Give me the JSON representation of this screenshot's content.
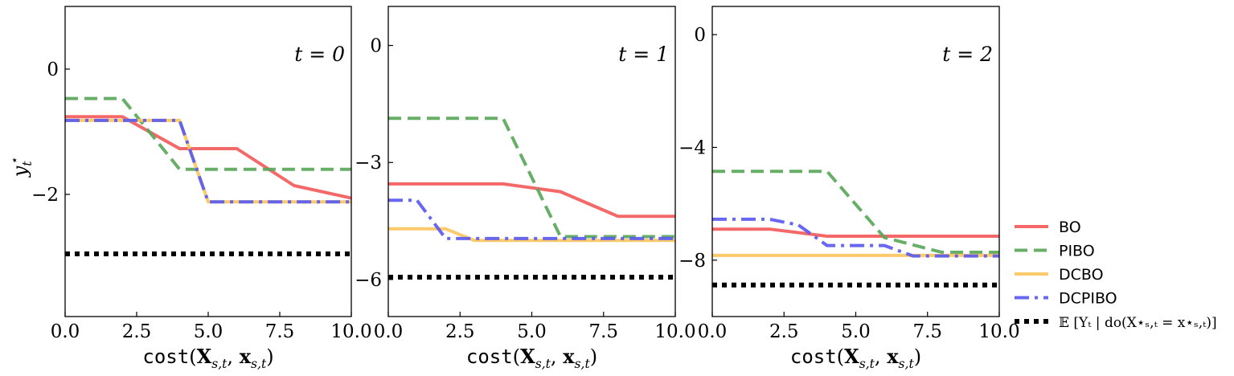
{
  "chart_data": [
    {
      "type": "line",
      "panel_label": "t = 0",
      "xlabel": "cost(X_{s,t}, x_{s,t})",
      "ylabel": "y_t^*",
      "xlim": [
        0,
        10
      ],
      "ylim": [
        -3.95,
        1.0
      ],
      "xticks": [
        0,
        2.5,
        5,
        7.5,
        10
      ],
      "xtick_labels": [
        "0.0",
        "2.5",
        "5.0",
        "7.5",
        "10.0"
      ],
      "yticks": [
        0,
        -2
      ],
      "ytick_labels": [
        "0",
        "−2"
      ],
      "series": [
        {
          "name": "BO",
          "color": "#f45b5b",
          "dash": "solid",
          "x": [
            0,
            2,
            4,
            6,
            8,
            10
          ],
          "y": [
            -0.76,
            -0.76,
            -1.27,
            -1.27,
            -1.86,
            -2.06
          ]
        },
        {
          "name": "PIBO",
          "color": "#5aa75a",
          "dash": "dashed",
          "x": [
            0,
            2,
            4,
            10
          ],
          "y": [
            -0.47,
            -0.47,
            -1.6,
            -1.6
          ]
        },
        {
          "name": "DCBO",
          "color": "#fcc45e",
          "dash": "solid",
          "x": [
            0,
            4,
            5,
            10
          ],
          "y": [
            -0.82,
            -0.82,
            -2.12,
            -2.12
          ]
        },
        {
          "name": "DCPIBO",
          "color": "#5a5af0",
          "dash": "dashdot",
          "x": [
            0,
            4,
            5,
            10
          ],
          "y": [
            -0.82,
            -0.82,
            -2.12,
            -2.12
          ]
        },
        {
          "name": "E[Y_t | do(X*_{s,t} = x*_{s,t})]",
          "color": "#000000",
          "dash": "dotted",
          "x": [
            0,
            10
          ],
          "y": [
            -2.95,
            -2.95
          ]
        }
      ]
    },
    {
      "type": "line",
      "panel_label": "t = 1",
      "xlabel": "cost(X_{s,t}, x_{s,t})",
      "xlim": [
        0,
        10
      ],
      "ylim": [
        -6.95,
        1.0
      ],
      "xticks": [
        0,
        2.5,
        5,
        7.5,
        10
      ],
      "xtick_labels": [
        "0.0",
        "2.5",
        "5.0",
        "7.5",
        "10.0"
      ],
      "yticks": [
        0,
        -3,
        -6
      ],
      "ytick_labels": [
        "0",
        "−3",
        "−6"
      ],
      "series": [
        {
          "name": "BO",
          "color": "#f45b5b",
          "dash": "solid",
          "x": [
            0,
            4,
            6,
            8,
            10
          ],
          "y": [
            -3.55,
            -3.55,
            -3.75,
            -4.38,
            -4.38
          ]
        },
        {
          "name": "PIBO",
          "color": "#5aa75a",
          "dash": "dashed",
          "x": [
            0,
            4,
            6,
            10
          ],
          "y": [
            -1.87,
            -1.87,
            -4.9,
            -4.9
          ]
        },
        {
          "name": "DCBO",
          "color": "#fcc45e",
          "dash": "solid",
          "x": [
            0,
            2,
            3,
            10
          ],
          "y": [
            -4.7,
            -4.7,
            -5.0,
            -5.0
          ]
        },
        {
          "name": "DCPIBO",
          "color": "#5a5af0",
          "dash": "dashdot",
          "x": [
            0,
            1,
            2,
            10
          ],
          "y": [
            -3.97,
            -3.97,
            -4.95,
            -4.95
          ]
        },
        {
          "name": "E[Y_t | do(X*_{s,t} = x*_{s,t})]",
          "color": "#000000",
          "dash": "dotted",
          "x": [
            0,
            10
          ],
          "y": [
            -5.94,
            -5.94
          ]
        }
      ]
    },
    {
      "type": "line",
      "panel_label": "t = 2",
      "xlabel": "cost(X_{s,t}, x_{s,t})",
      "xlim": [
        0,
        10
      ],
      "ylim": [
        -10.0,
        1.0
      ],
      "xticks": [
        0,
        2.5,
        5,
        7.5,
        10
      ],
      "xtick_labels": [
        "0.0",
        "2.5",
        "5.0",
        "7.5",
        "10.0"
      ],
      "yticks": [
        0,
        -4,
        -8
      ],
      "ytick_labels": [
        "0",
        "−4",
        "−8"
      ],
      "series": [
        {
          "name": "BO",
          "color": "#f45b5b",
          "dash": "solid",
          "x": [
            0,
            2,
            4,
            10
          ],
          "y": [
            -6.9,
            -6.9,
            -7.15,
            -7.15
          ]
        },
        {
          "name": "PIBO",
          "color": "#5aa75a",
          "dash": "dashed",
          "x": [
            0,
            4,
            6,
            8,
            10
          ],
          "y": [
            -4.85,
            -4.85,
            -7.2,
            -7.72,
            -7.72
          ]
        },
        {
          "name": "DCBO",
          "color": "#fcc45e",
          "dash": "solid",
          "x": [
            0,
            10
          ],
          "y": [
            -7.83,
            -7.83
          ]
        },
        {
          "name": "DCPIBO",
          "color": "#5a5af0",
          "dash": "dashdot",
          "x": [
            0,
            2,
            3,
            4,
            6,
            7,
            10
          ],
          "y": [
            -6.55,
            -6.55,
            -6.75,
            -7.48,
            -7.48,
            -7.85,
            -7.85
          ]
        },
        {
          "name": "E[Y_t | do(X*_{s,t} = x*_{s,t})]",
          "color": "#000000",
          "dash": "dotted",
          "x": [
            0,
            10
          ],
          "y": [
            -8.88,
            -8.88
          ]
        }
      ]
    }
  ],
  "legend": {
    "placement": "right",
    "entries": [
      {
        "label": "BO",
        "color": "#f45b5b",
        "dash": "solid"
      },
      {
        "label": "PIBO",
        "color": "#5aa75a",
        "dash": "dashed"
      },
      {
        "label": "DCBO",
        "color": "#fcc45e",
        "dash": "solid"
      },
      {
        "label": "DCPIBO",
        "color": "#5a5af0",
        "dash": "dashdot"
      },
      {
        "label": "𝔼 [Yₜ | do(X⋆ₛ,ₜ = x⋆ₛ,ₜ)]",
        "color": "#000000",
        "dash": "dotted"
      }
    ]
  }
}
